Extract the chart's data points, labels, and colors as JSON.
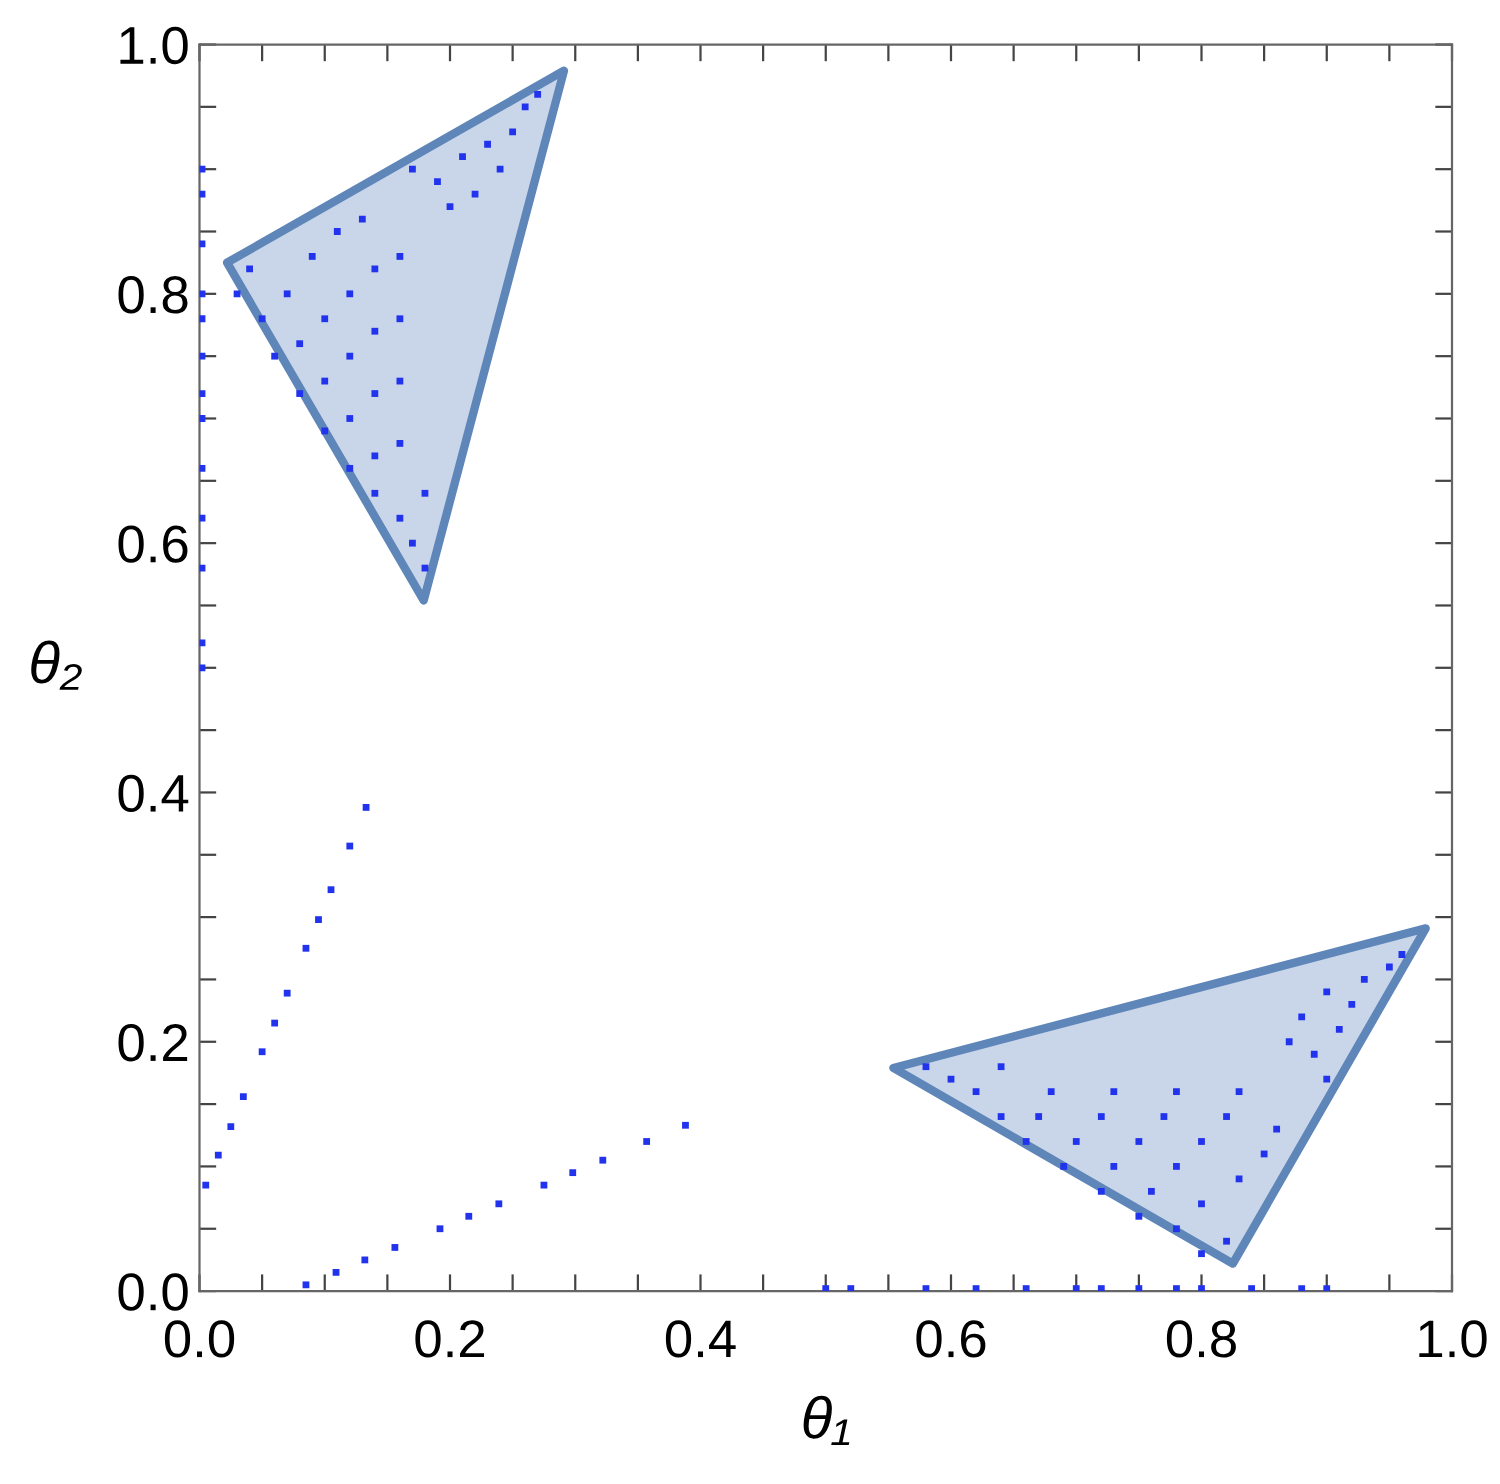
{
  "chart_data": {
    "type": "scatter",
    "xlabel": "θ₁",
    "ylabel": "θ₂",
    "xlim": [
      0,
      1
    ],
    "ylim": [
      0,
      1
    ],
    "xticks": [
      {
        "value": 0,
        "label": "0.0"
      },
      {
        "value": 0.05,
        "label": null
      },
      {
        "value": 0.1,
        "label": null
      },
      {
        "value": 0.15,
        "label": null
      },
      {
        "value": 0.2,
        "label": "0.2"
      },
      {
        "value": 0.25,
        "label": null
      },
      {
        "value": 0.3,
        "label": null
      },
      {
        "value": 0.35,
        "label": null
      },
      {
        "value": 0.4,
        "label": "0.4"
      },
      {
        "value": 0.45,
        "label": null
      },
      {
        "value": 0.5,
        "label": null
      },
      {
        "value": 0.55,
        "label": null
      },
      {
        "value": 0.6,
        "label": "0.6"
      },
      {
        "value": 0.65,
        "label": null
      },
      {
        "value": 0.7,
        "label": null
      },
      {
        "value": 0.75,
        "label": null
      },
      {
        "value": 0.8,
        "label": "0.8"
      },
      {
        "value": 0.85,
        "label": null
      },
      {
        "value": 0.9,
        "label": null
      },
      {
        "value": 0.95,
        "label": null
      },
      {
        "value": 1,
        "label": "1.0"
      }
    ],
    "yticks": [
      {
        "value": 0,
        "label": "0.0"
      },
      {
        "value": 0.05,
        "label": null
      },
      {
        "value": 0.1,
        "label": null
      },
      {
        "value": 0.15,
        "label": null
      },
      {
        "value": 0.2,
        "label": "0.2"
      },
      {
        "value": 0.25,
        "label": null
      },
      {
        "value": 0.3,
        "label": null
      },
      {
        "value": 0.35,
        "label": null
      },
      {
        "value": 0.4,
        "label": "0.4"
      },
      {
        "value": 0.45,
        "label": null
      },
      {
        "value": 0.5,
        "label": null
      },
      {
        "value": 0.55,
        "label": null
      },
      {
        "value": 0.6,
        "label": "0.6"
      },
      {
        "value": 0.65,
        "label": null
      },
      {
        "value": 0.7,
        "label": null
      },
      {
        "value": 0.75,
        "label": null
      },
      {
        "value": 0.8,
        "label": "0.8"
      },
      {
        "value": 0.85,
        "label": null
      },
      {
        "value": 0.9,
        "label": null
      },
      {
        "value": 0.95,
        "label": null
      },
      {
        "value": 1,
        "label": "1.0"
      }
    ],
    "grid": false,
    "legend": false,
    "series": [
      {
        "type": "area",
        "color": "#c9d6e9",
        "x": [
          0.022,
          0.291,
          0.179,
          0.022
        ],
        "values": [
          0.825,
          0.979,
          0.554,
          0.825
        ]
      },
      {
        "type": "area",
        "color": "#c9d6e9",
        "x": [
          0.554,
          0.979,
          0.825,
          0.554
        ],
        "values": [
          0.179,
          0.291,
          0.022,
          0.179
        ]
      },
      {
        "marker": "square",
        "color": "#2233ee",
        "x": [
          0.03,
          0.04,
          0.05,
          0.07,
          0.09,
          0.11,
          0.13,
          0.06,
          0.08,
          0.1,
          0.12,
          0.14,
          0.16,
          0.08,
          0.1,
          0.12,
          0.14,
          0.16,
          0.1,
          0.12,
          0.14,
          0.16,
          0.12,
          0.14,
          0.16,
          0.14,
          0.16,
          0.18,
          0.17,
          0.18,
          0.17,
          0.19,
          0.21,
          0.23,
          0.25,
          0.2,
          0.22,
          0.24,
          0.26,
          0.27,
          0.8,
          0.82,
          0.78,
          0.8,
          0.83,
          0.85,
          0.86,
          0.75,
          0.76,
          0.78,
          0.8,
          0.82,
          0.83,
          0.72,
          0.73,
          0.75,
          0.77,
          0.78,
          0.69,
          0.7,
          0.72,
          0.73,
          0.66,
          0.67,
          0.68,
          0.64,
          0.62,
          0.64,
          0.6,
          0.58,
          0.9,
          0.89,
          0.91,
          0.92,
          0.93,
          0.87,
          0.88,
          0.9,
          0.95,
          0.96,
          0.002,
          0.002,
          0.002,
          0.002,
          0.002,
          0.002,
          0.002,
          0.002,
          0.002,
          0.002,
          0.002,
          0.002,
          0.002,
          0.5,
          0.52,
          0.58,
          0.62,
          0.66,
          0.7,
          0.72,
          0.75,
          0.78,
          0.8,
          0.84,
          0.88,
          0.9,
          0.005,
          0.015,
          0.025,
          0.035,
          0.05,
          0.06,
          0.07,
          0.085,
          0.095,
          0.105,
          0.12,
          0.133,
          0.085,
          0.109,
          0.132,
          0.156,
          0.192,
          0.215,
          0.239,
          0.275,
          0.298,
          0.322,
          0.357,
          0.388
        ],
        "values": [
          0.8,
          0.82,
          0.78,
          0.8,
          0.83,
          0.85,
          0.86,
          0.75,
          0.76,
          0.78,
          0.8,
          0.82,
          0.83,
          0.72,
          0.73,
          0.75,
          0.77,
          0.78,
          0.69,
          0.7,
          0.72,
          0.73,
          0.66,
          0.67,
          0.68,
          0.64,
          0.62,
          0.64,
          0.6,
          0.58,
          0.9,
          0.89,
          0.91,
          0.92,
          0.93,
          0.87,
          0.88,
          0.9,
          0.95,
          0.96,
          0.03,
          0.04,
          0.05,
          0.07,
          0.09,
          0.11,
          0.13,
          0.06,
          0.08,
          0.1,
          0.12,
          0.14,
          0.16,
          0.08,
          0.1,
          0.12,
          0.14,
          0.16,
          0.1,
          0.12,
          0.14,
          0.16,
          0.12,
          0.14,
          0.16,
          0.14,
          0.16,
          0.18,
          0.17,
          0.18,
          0.17,
          0.19,
          0.21,
          0.23,
          0.25,
          0.2,
          0.22,
          0.24,
          0.26,
          0.27,
          0.5,
          0.52,
          0.58,
          0.62,
          0.66,
          0.7,
          0.72,
          0.75,
          0.78,
          0.8,
          0.84,
          0.88,
          0.9,
          0.002,
          0.002,
          0.002,
          0.002,
          0.002,
          0.002,
          0.002,
          0.002,
          0.002,
          0.002,
          0.002,
          0.002,
          0.002,
          0.085,
          0.109,
          0.132,
          0.156,
          0.192,
          0.215,
          0.239,
          0.275,
          0.298,
          0.322,
          0.357,
          0.388,
          0.005,
          0.015,
          0.025,
          0.035,
          0.05,
          0.06,
          0.07,
          0.085,
          0.095,
          0.105,
          0.12,
          0.133
        ]
      }
    ]
  }
}
